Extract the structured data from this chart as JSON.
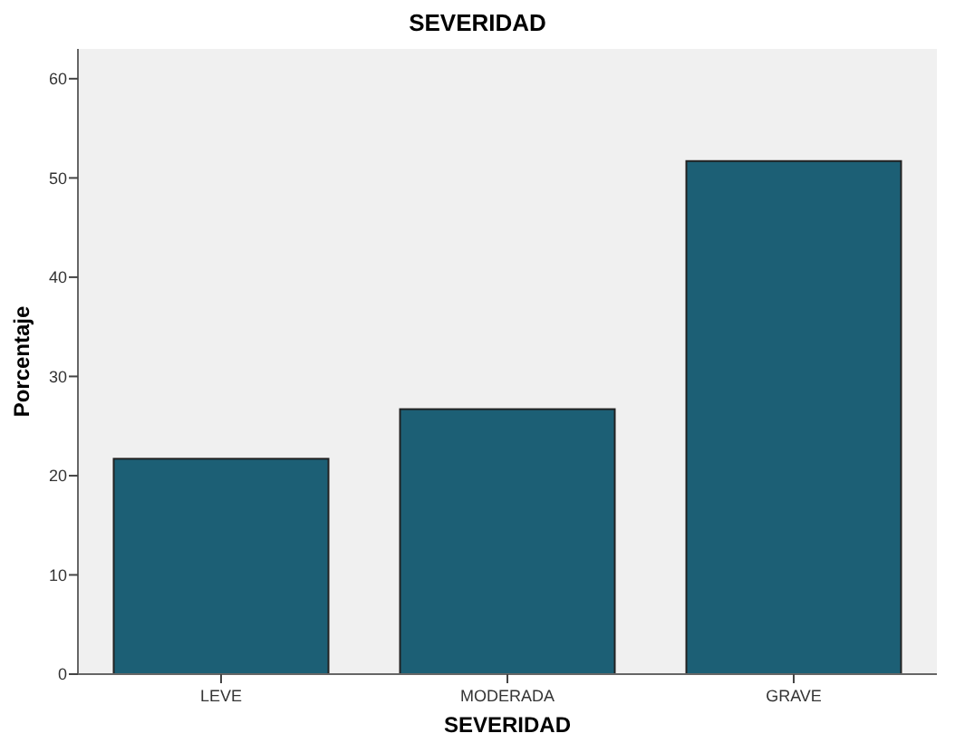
{
  "chart_data": {
    "type": "bar",
    "title": "SEVERIDAD",
    "xlabel": "SEVERIDAD",
    "ylabel": "Porcentaje",
    "categories": [
      "LEVE",
      "MODERADA",
      "GRAVE"
    ],
    "values": [
      21.7,
      26.7,
      51.7
    ],
    "color": "#1c5f75",
    "ylim": [
      0,
      63
    ],
    "yticks": [
      0,
      10,
      20,
      30,
      40,
      50,
      60
    ],
    "grid": false
  }
}
